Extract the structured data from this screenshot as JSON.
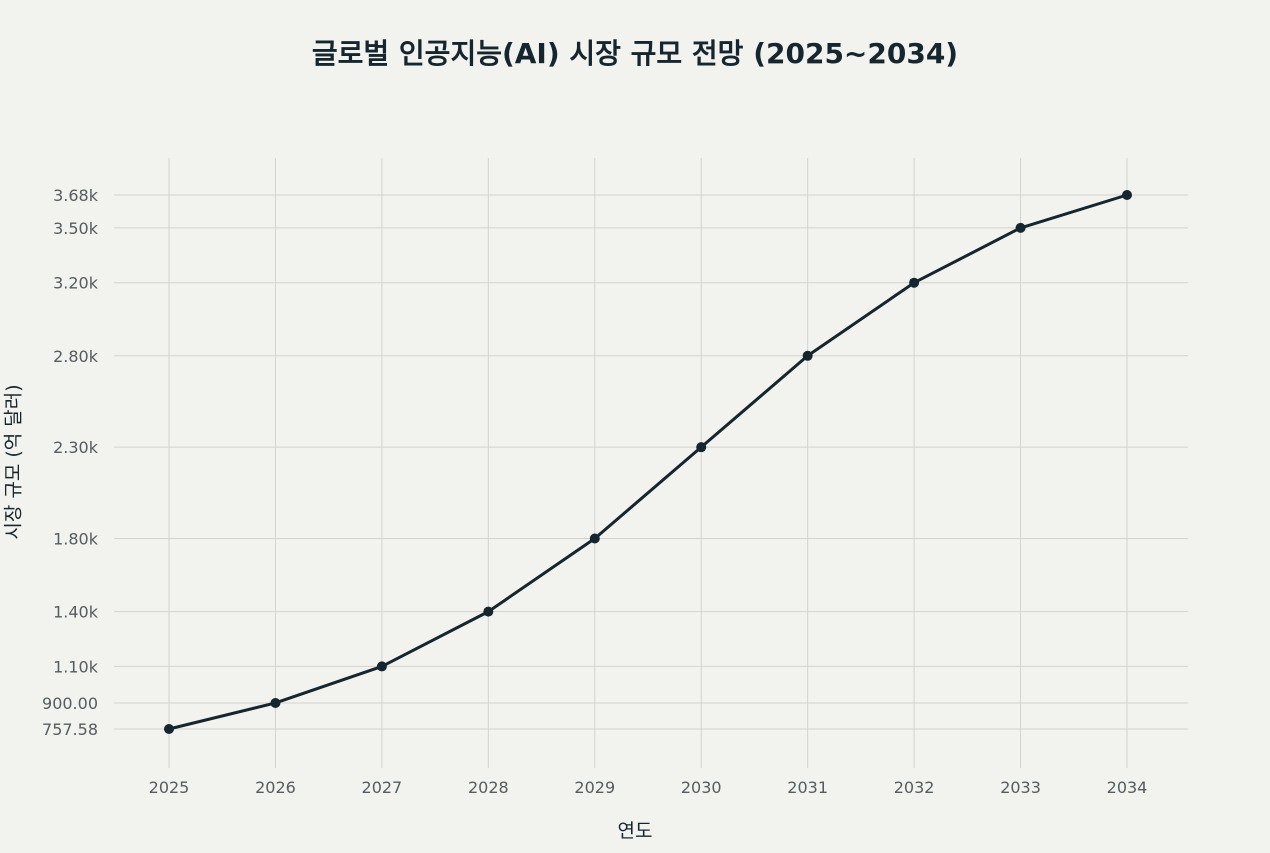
{
  "chart_data": {
    "type": "line",
    "title": "글로벌 인공지능(AI) 시장 규모 전망 (2025~2034)",
    "xlabel": "연도",
    "ylabel": "시장 규모 (억 달러)",
    "x": [
      "2025",
      "2026",
      "2027",
      "2028",
      "2029",
      "2030",
      "2031",
      "2032",
      "2033",
      "2034"
    ],
    "series": [
      {
        "values": [
          757.58,
          900,
          1100,
          1400,
          1800,
          2300,
          2800,
          3200,
          3500,
          3680
        ]
      }
    ],
    "yticks": [
      757.58,
      900,
      1100,
      1400,
      1800,
      2300,
      2800,
      3200,
      3500,
      3680
    ],
    "ytick_labels": [
      "757.58",
      "900.00",
      "1.10k",
      "1.40k",
      "1.80k",
      "2.30k",
      "2.80k",
      "3.20k",
      "3.50k",
      "3.68k"
    ],
    "grid": true,
    "line_color": "#15262e",
    "marker_color": "#15262e",
    "grid_color": "#d3d4d0",
    "background": "#f2f2ee"
  }
}
